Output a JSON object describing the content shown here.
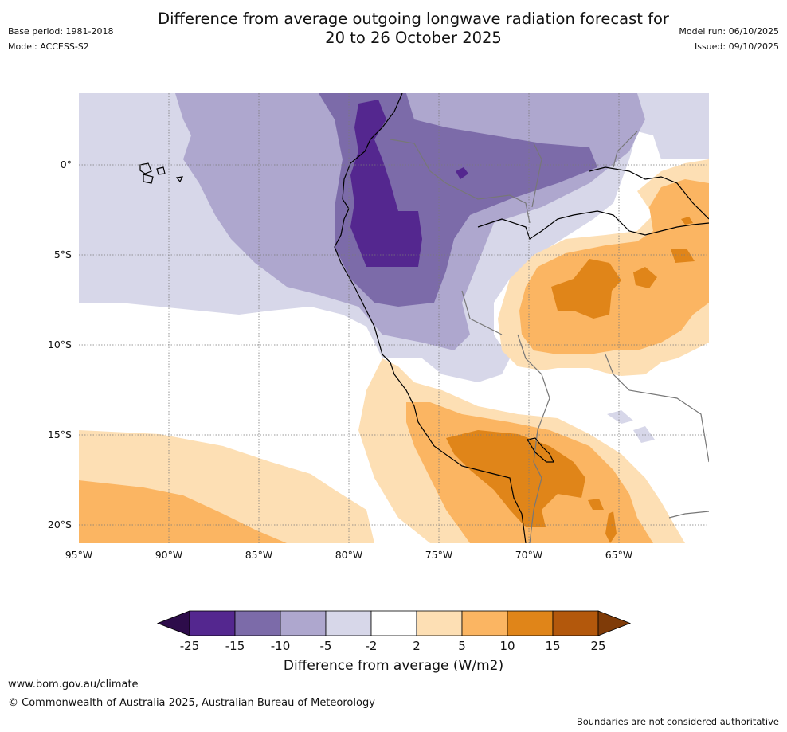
{
  "title": {
    "line1": "Difference from average outgoing longwave radiation forecast for",
    "line2": "20 to 26 October 2025"
  },
  "meta": {
    "base_period": "Base period: 1981-2018",
    "model": "Model: ACCESS-S2",
    "model_run": "Model run: 06/10/2025",
    "issued": "Issued: 09/10/2025"
  },
  "map": {
    "lon_labels": [
      "95°W",
      "90°W",
      "85°W",
      "80°W",
      "75°W",
      "70°W",
      "65°W"
    ],
    "lat_labels": [
      "0°",
      "5°S",
      "10°S",
      "15°S",
      "20°S"
    ],
    "region": "Western South America and eastern tropical Pacific"
  },
  "colorbar": {
    "ticks": [
      "-25",
      "-15",
      "-10",
      "-5",
      "-2",
      "2",
      "5",
      "10",
      "15",
      "25"
    ],
    "colors": {
      "lt_minus25": "#2d0c4a",
      "m25_m15": "#54278f",
      "m15_m10": "#7c6ba9",
      "m10_m5": "#aea7ce",
      "m5_m2": "#d7d7e9",
      "m2_p2": "#ffffff",
      "p2_p5": "#fddfb4",
      "p5_p10": "#fbb562",
      "p10_p15": "#e08519",
      "p15_p25": "#b3580c",
      "gt_p25": "#7f3b08"
    },
    "label": "Difference from average (W/m2)"
  },
  "footer": {
    "url": "www.bom.gov.au/climate",
    "copyright": "© Commonwealth of Australia 2025, Australian Bureau of Meteorology",
    "disclaimer": "Boundaries are not considered authoritative"
  }
}
